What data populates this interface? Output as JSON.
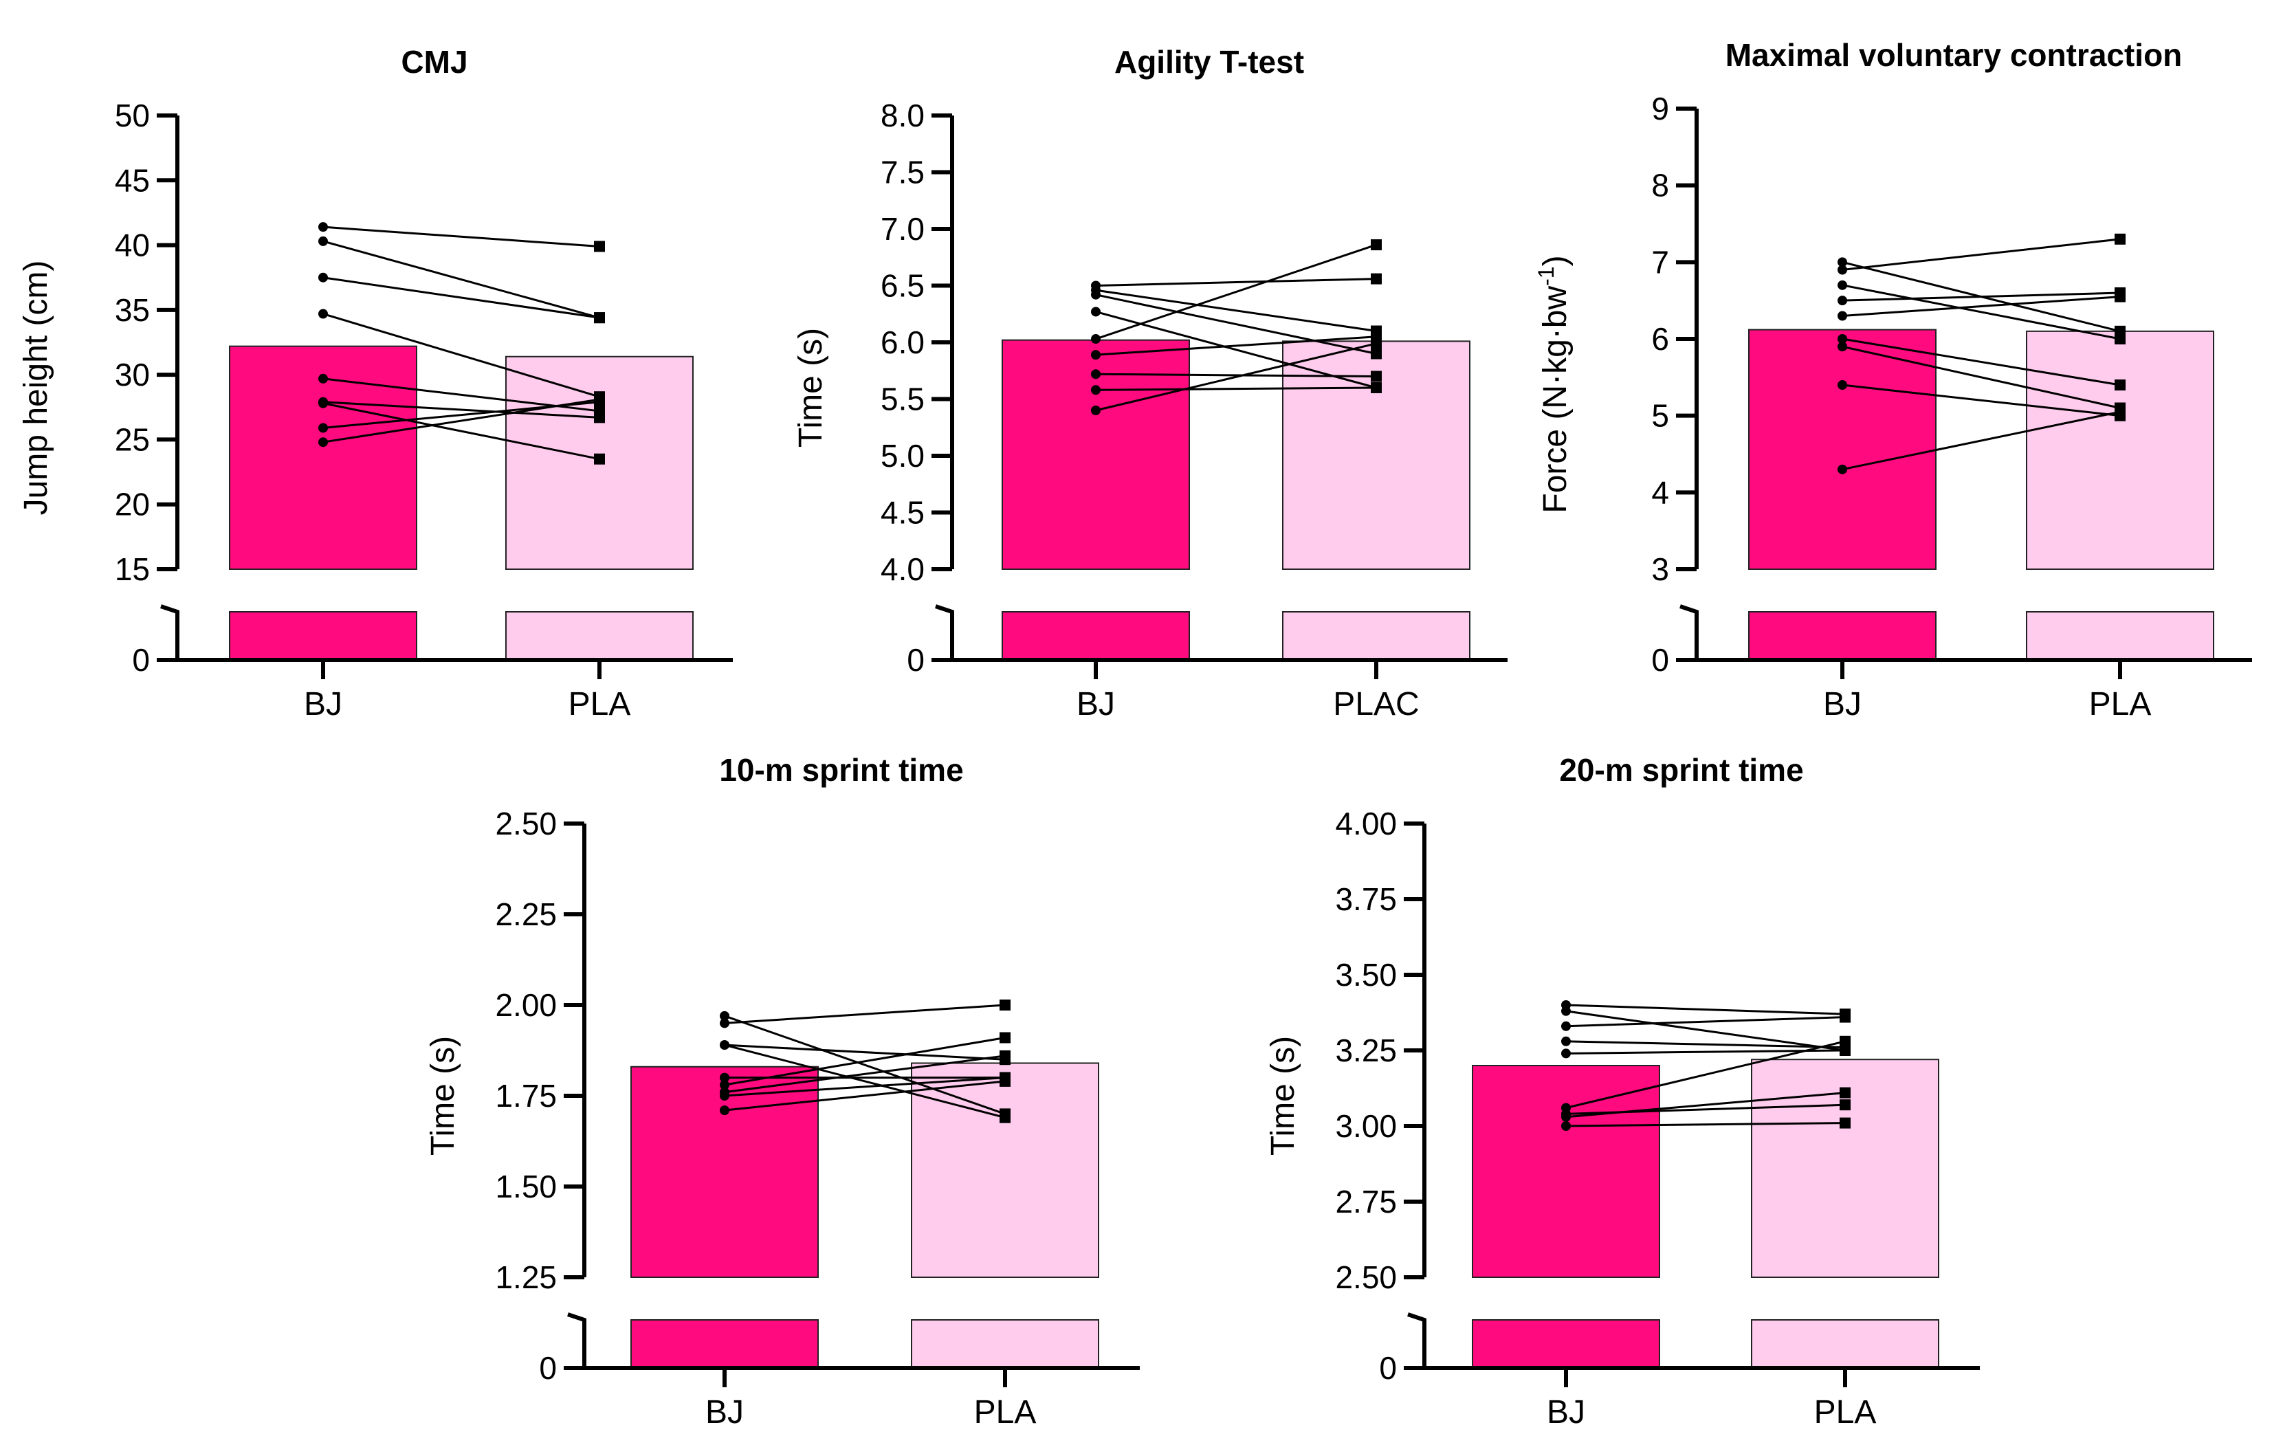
{
  "colors": {
    "bj": "#FF0A7F",
    "pla": "#FFCCEE",
    "line": "#000000"
  },
  "chart_data": [
    {
      "type": "bar",
      "title": "CMJ",
      "ylabel": "Jump height (cm)",
      "ylabel_super": "",
      "ylabel_tail": "",
      "categories": [
        "BJ",
        "PLA"
      ],
      "values": [
        32.2,
        31.4
      ],
      "ylim": [
        15,
        50
      ],
      "yticks": [
        "15",
        "20",
        "25",
        "30",
        "35",
        "40",
        "45",
        "50"
      ],
      "ytick_values": [
        15,
        20,
        25,
        30,
        35,
        40,
        45,
        50
      ],
      "break_label": "0",
      "pairs": [
        [
          41.4,
          39.9
        ],
        [
          40.3,
          34.4
        ],
        [
          37.5,
          34.4
        ],
        [
          34.7,
          28.3
        ],
        [
          29.7,
          27.2
        ],
        [
          27.9,
          26.7
        ],
        [
          27.8,
          23.5
        ],
        [
          25.9,
          27.9
        ],
        [
          24.8,
          28.1
        ]
      ]
    },
    {
      "type": "bar",
      "title": "Agility  T-test",
      "ylabel": "Time (s)",
      "ylabel_super": "",
      "ylabel_tail": "",
      "categories": [
        "BJ",
        "PLAC"
      ],
      "values": [
        6.02,
        6.01
      ],
      "ylim": [
        4.0,
        8.0
      ],
      "yticks": [
        "4.0",
        "4.5",
        "5.0",
        "5.5",
        "6.0",
        "6.5",
        "7.0",
        "7.5",
        "8.0"
      ],
      "ytick_values": [
        4.0,
        4.5,
        5.0,
        5.5,
        6.0,
        6.5,
        7.0,
        7.5,
        8.0
      ],
      "break_label": "0",
      "pairs": [
        [
          6.5,
          6.56
        ],
        [
          6.46,
          6.1
        ],
        [
          6.42,
          5.9
        ],
        [
          6.27,
          5.6
        ],
        [
          6.03,
          6.86
        ],
        [
          5.89,
          6.05
        ],
        [
          5.72,
          5.7
        ],
        [
          5.58,
          5.6
        ],
        [
          5.4,
          5.99
        ]
      ]
    },
    {
      "type": "bar",
      "title": "Maximal voluntary contraction",
      "ylabel": "Force (N·kg·bw",
      "ylabel_super": "-1",
      "ylabel_tail": ")",
      "categories": [
        "BJ",
        "PLA"
      ],
      "values": [
        6.12,
        6.1
      ],
      "ylim": [
        3,
        9
      ],
      "yticks": [
        "3",
        "4",
        "5",
        "6",
        "7",
        "8",
        "9"
      ],
      "ytick_values": [
        3,
        4,
        5,
        6,
        7,
        8,
        9
      ],
      "break_label": "0",
      "pairs": [
        [
          7.0,
          6.1
        ],
        [
          6.9,
          7.3
        ],
        [
          6.7,
          6.0
        ],
        [
          6.5,
          6.6
        ],
        [
          6.3,
          6.55
        ],
        [
          6.0,
          5.4
        ],
        [
          5.9,
          5.1
        ],
        [
          5.4,
          5.0
        ],
        [
          4.3,
          5.05
        ]
      ]
    },
    {
      "type": "bar",
      "title": "10-m sprint time",
      "ylabel": "Time (s)",
      "ylabel_super": "",
      "ylabel_tail": "",
      "categories": [
        "BJ",
        "PLA"
      ],
      "values": [
        1.83,
        1.84
      ],
      "ylim": [
        1.25,
        2.5
      ],
      "yticks": [
        "1.25",
        "1.50",
        "1.75",
        "2.00",
        "2.25",
        "2.50"
      ],
      "ytick_values": [
        1.25,
        1.5,
        1.75,
        2.0,
        2.25,
        2.5
      ],
      "break_label": "0",
      "pairs": [
        [
          1.97,
          1.7
        ],
        [
          1.95,
          2.0
        ],
        [
          1.89,
          1.85
        ],
        [
          1.89,
          1.69
        ],
        [
          1.8,
          1.8
        ],
        [
          1.78,
          1.91
        ],
        [
          1.76,
          1.86
        ],
        [
          1.75,
          1.8
        ],
        [
          1.71,
          1.79
        ]
      ]
    },
    {
      "type": "bar",
      "title": "20-m sprint time",
      "ylabel": "Time (s)",
      "ylabel_super": "",
      "ylabel_tail": "",
      "categories": [
        "BJ",
        "PLA"
      ],
      "values": [
        3.2,
        3.22
      ],
      "ylim": [
        2.5,
        4.0
      ],
      "yticks": [
        "2.50",
        "2.75",
        "3.00",
        "3.25",
        "3.50",
        "3.75",
        "4.00"
      ],
      "ytick_values": [
        2.5,
        2.75,
        3.0,
        3.25,
        3.5,
        3.75,
        4.0
      ],
      "break_label": "0",
      "pairs": [
        [
          3.4,
          3.37
        ],
        [
          3.38,
          3.25
        ],
        [
          3.33,
          3.36
        ],
        [
          3.28,
          3.26
        ],
        [
          3.24,
          3.25
        ],
        [
          3.06,
          3.28
        ],
        [
          3.04,
          3.07
        ],
        [
          3.03,
          3.11
        ],
        [
          3.0,
          3.01
        ]
      ]
    }
  ]
}
